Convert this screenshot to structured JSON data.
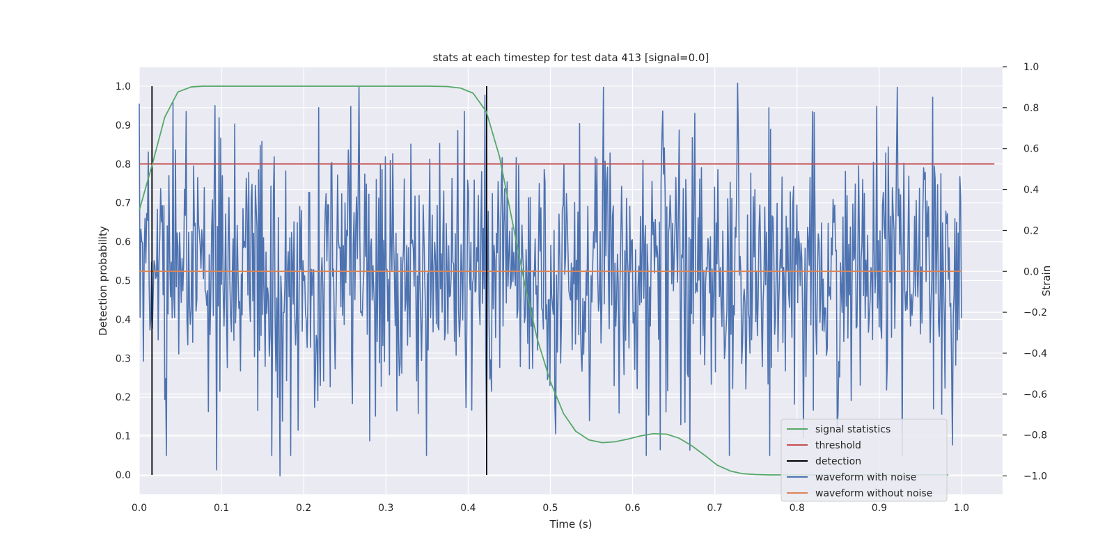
{
  "chart_data": {
    "type": "line",
    "title": "stats at each timestep for test data 413 [signal=0.0]",
    "xlabel": "Time (s)",
    "ylabel": "Detection probability",
    "y2label": "Strain",
    "xlim": [
      0.0,
      1.05
    ],
    "ylim": [
      -0.05,
      1.05
    ],
    "y2lim": [
      -1.09,
      1.0
    ],
    "xticks": [
      0.0,
      0.1,
      0.2,
      0.3,
      0.4,
      0.5,
      0.6,
      0.7,
      0.8,
      0.9,
      1.0
    ],
    "xtick_labels": [
      "0.0",
      "0.1",
      "0.2",
      "0.3",
      "0.4",
      "0.5",
      "0.6",
      "0.7",
      "0.8",
      "0.9",
      "1.0"
    ],
    "yticks": [
      0.0,
      0.1,
      0.2,
      0.3,
      0.4,
      0.5,
      0.6,
      0.7,
      0.8,
      0.9,
      1.0
    ],
    "ytick_labels": [
      "0.0",
      "0.1",
      "0.2",
      "0.3",
      "0.4",
      "0.5",
      "0.6",
      "0.7",
      "0.8",
      "0.9",
      "1.0"
    ],
    "y2ticks": [
      -1.0,
      -0.8,
      -0.6,
      -0.4,
      -0.2,
      0.0,
      0.2,
      0.4,
      0.6,
      0.8,
      1.0
    ],
    "y2tick_labels": [
      "−1.0",
      "−0.8",
      "−0.6",
      "−0.4",
      "−0.2",
      "0.0",
      "0.2",
      "0.4",
      "0.6",
      "0.8",
      "1.0"
    ],
    "grid": true,
    "legend_position": "bottom-right",
    "series": [
      {
        "name": "signal statistics",
        "color": "#55a868",
        "axis": "left",
        "x": [
          0.0,
          0.016,
          0.031,
          0.047,
          0.063,
          0.078,
          0.1,
          0.15,
          0.2,
          0.25,
          0.3,
          0.35,
          0.375,
          0.391,
          0.406,
          0.422,
          0.438,
          0.453,
          0.469,
          0.484,
          0.5,
          0.516,
          0.531,
          0.547,
          0.563,
          0.578,
          0.594,
          0.609,
          0.625,
          0.641,
          0.656,
          0.672,
          0.688,
          0.703,
          0.719,
          0.734,
          0.75,
          0.766,
          0.781,
          0.8,
          0.85,
          0.9,
          0.95,
          0.984
        ],
        "y": [
          0.68,
          0.8,
          0.92,
          0.985,
          0.998,
          1.0,
          1.0,
          1.0,
          1.0,
          1.0,
          1.0,
          1.0,
          0.999,
          0.995,
          0.982,
          0.935,
          0.82,
          0.66,
          0.49,
          0.35,
          0.24,
          0.158,
          0.112,
          0.09,
          0.083,
          0.085,
          0.092,
          0.1,
          0.106,
          0.105,
          0.095,
          0.075,
          0.05,
          0.025,
          0.01,
          0.003,
          0.001,
          0.0,
          0.0,
          0.0,
          0.0,
          0.0,
          0.0,
          0.0
        ]
      },
      {
        "name": "threshold",
        "color": "#c44e52",
        "axis": "left",
        "x": [
          0.0,
          1.04
        ],
        "y": [
          0.8,
          0.8
        ]
      },
      {
        "name": "detection",
        "color": "#000000",
        "axis": "left",
        "type": "vlines",
        "x": [
          0.0155,
          0.4225
        ],
        "y_range": [
          0.0,
          1.0
        ]
      },
      {
        "name": "waveform with noise",
        "color": "#4c72b0",
        "axis": "right",
        "x_range": [
          0.0,
          1.0
        ],
        "n_points": 1000,
        "seed": 413,
        "mean": 0.0,
        "std": 0.33,
        "extremes": [
          [
            0.0,
            0.82
          ],
          [
            0.0945,
            -0.97
          ],
          [
            0.1715,
            -1.0
          ],
          [
            0.2185,
            0.8
          ],
          [
            0.4225,
            -0.82
          ],
          [
            0.7275,
            0.92
          ],
          [
            0.7655,
            0.8
          ]
        ]
      },
      {
        "name": "waveform without noise",
        "color": "#dd8452",
        "axis": "right",
        "x": [
          0.0,
          1.0
        ],
        "y": [
          0.0,
          0.0
        ]
      }
    ]
  }
}
